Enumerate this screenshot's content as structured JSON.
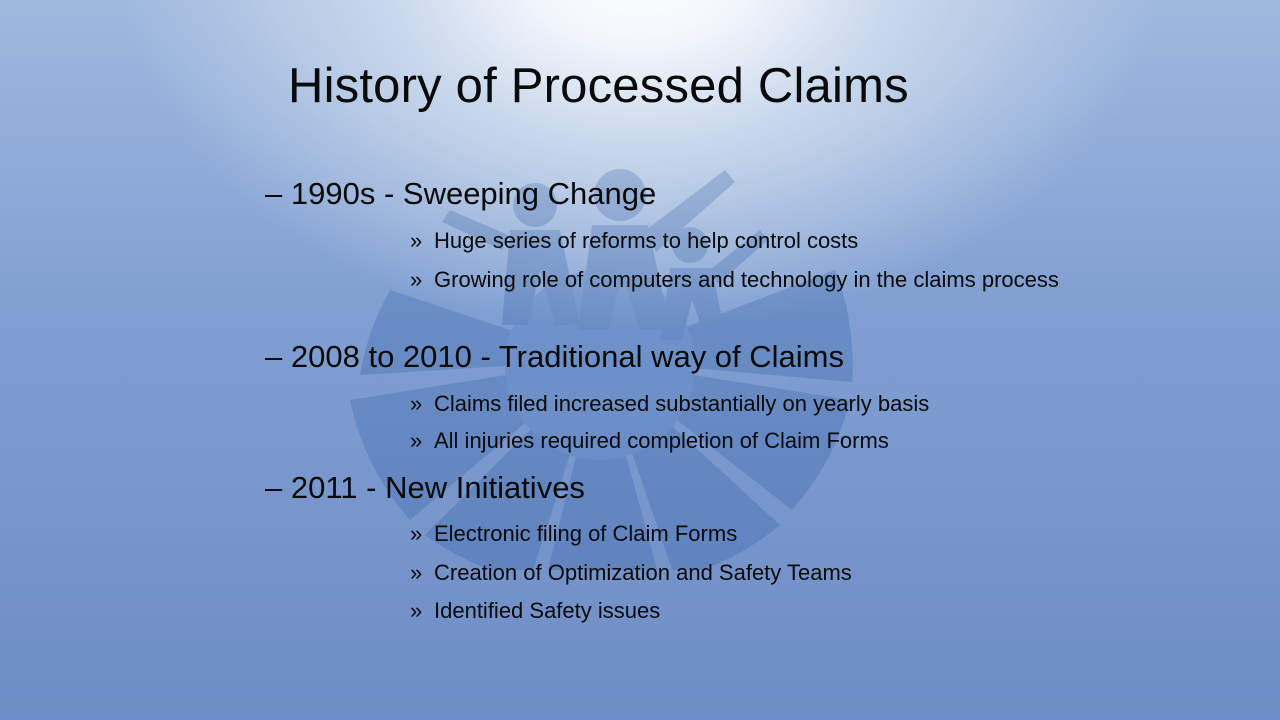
{
  "slide": {
    "title": "History of Processed Claims",
    "sections": [
      {
        "dash": "–",
        "heading": "1990s - Sweeping Change",
        "bullet_mark": "»",
        "items": [
          "Huge series of reforms to help control costs",
          "Growing role of computers and technology in the claims process"
        ]
      },
      {
        "dash": "–",
        "heading": "2008 to 2010 - Traditional way of Claims",
        "bullet_mark": "»",
        "items": [
          "Claims filed increased substantially on yearly basis",
          "All injuries required completion of Claim Forms"
        ]
      },
      {
        "dash": "–",
        "heading": "2011 - New Initiatives",
        "bullet_mark": "»",
        "items": [
          "Electronic filing of Claim Forms",
          "Creation of Optimization and Safety Teams",
          "Identified Safety issues"
        ]
      }
    ],
    "colors": {
      "background_top": "#ffffff",
      "background_bottom": "#6d8dc6",
      "watermark": "#1f4f9a",
      "text": "#0a0a0a"
    },
    "watermark_icon": "people-wheel-logo-icon"
  }
}
